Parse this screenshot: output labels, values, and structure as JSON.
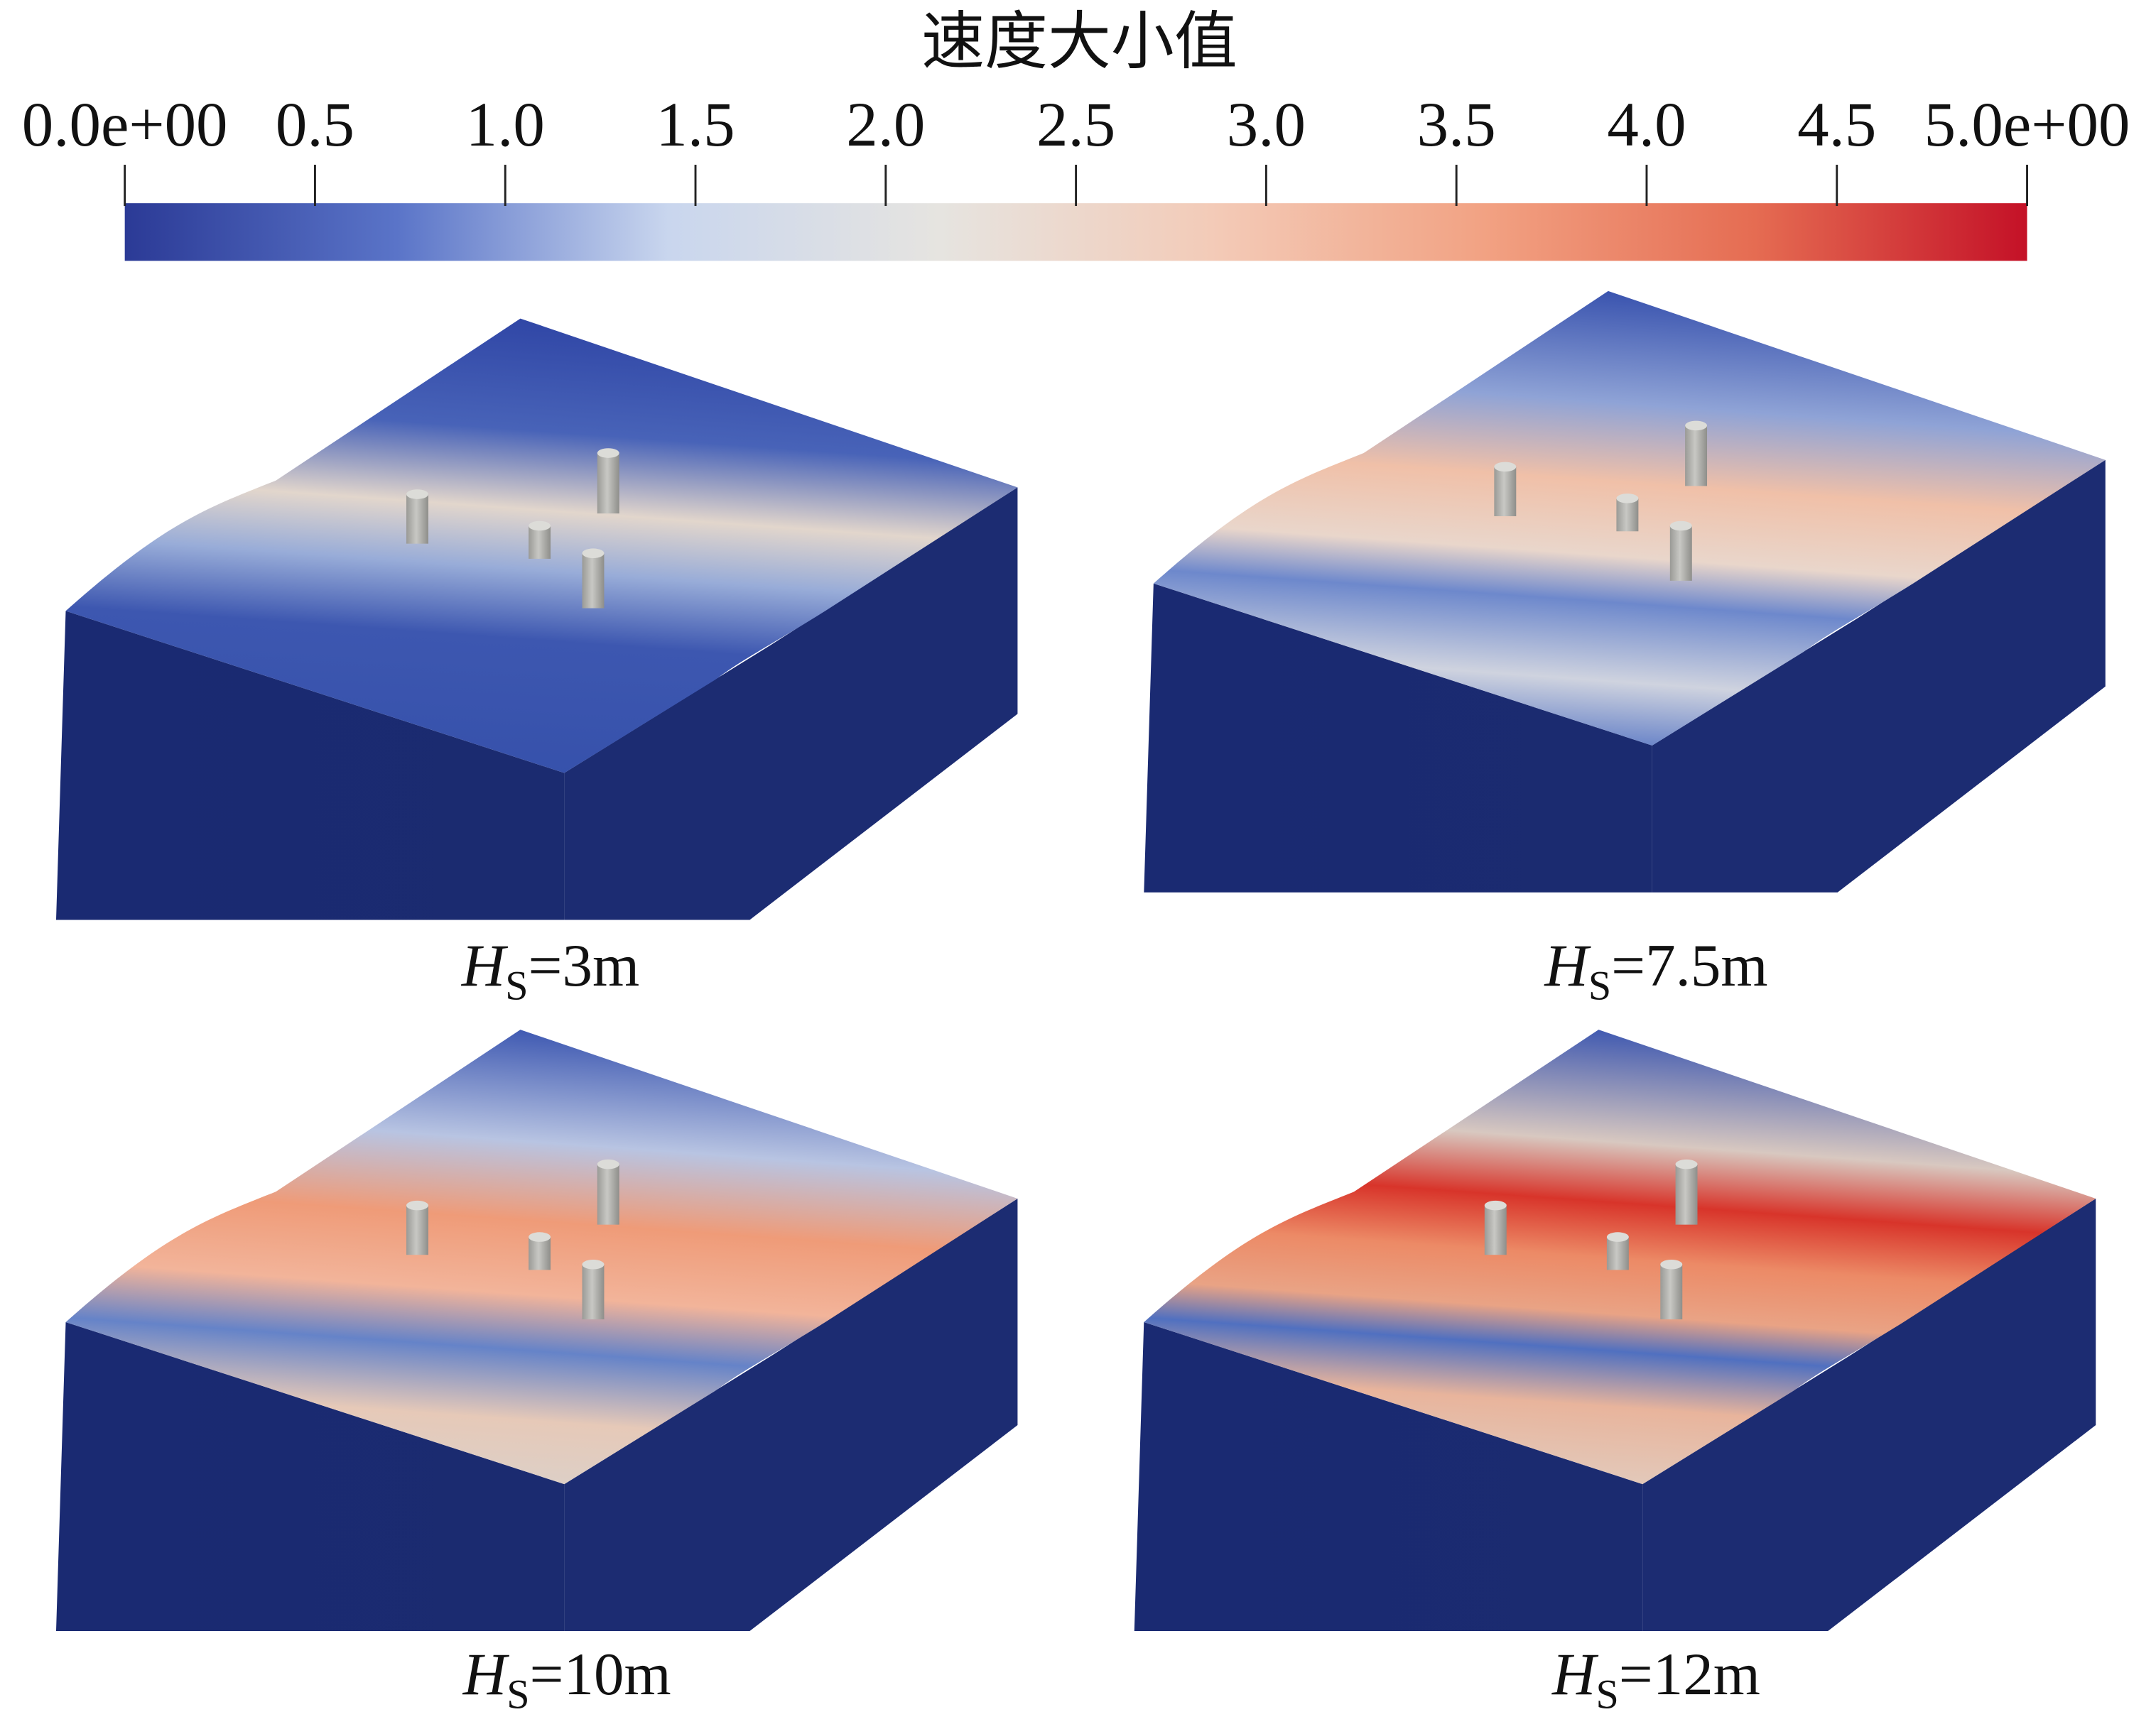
{
  "colorbar": {
    "title": "速度大小值",
    "lim": [
      0,
      5
    ],
    "ticks": [
      {
        "value": 0,
        "label": "0.0e+00"
      },
      0.5,
      {
        "value": 1,
        "label": "1.0"
      },
      1.5,
      {
        "value": 2,
        "label": "2.0"
      },
      2.5,
      {
        "value": 3,
        "label": "3.0"
      },
      3.5,
      {
        "value": 4,
        "label": "4.0"
      },
      4.5,
      {
        "value": 5,
        "label": "5.0e+00"
      }
    ],
    "colormap": [
      "#2b3a96",
      "#5a74c8",
      "#c9d6ee",
      "#e6e4e0",
      "#f3cbb8",
      "#f2a283",
      "#e56c52",
      "#c41127"
    ]
  },
  "panels": [
    {
      "symbol": "H",
      "subscript": "S",
      "text": "=3m"
    },
    {
      "symbol": "H",
      "subscript": "S",
      "text": "=7.5m"
    },
    {
      "symbol": "H",
      "subscript": "S",
      "text": "=10m"
    },
    {
      "symbol": "H",
      "subscript": "S",
      "text": "=12m"
    }
  ]
}
